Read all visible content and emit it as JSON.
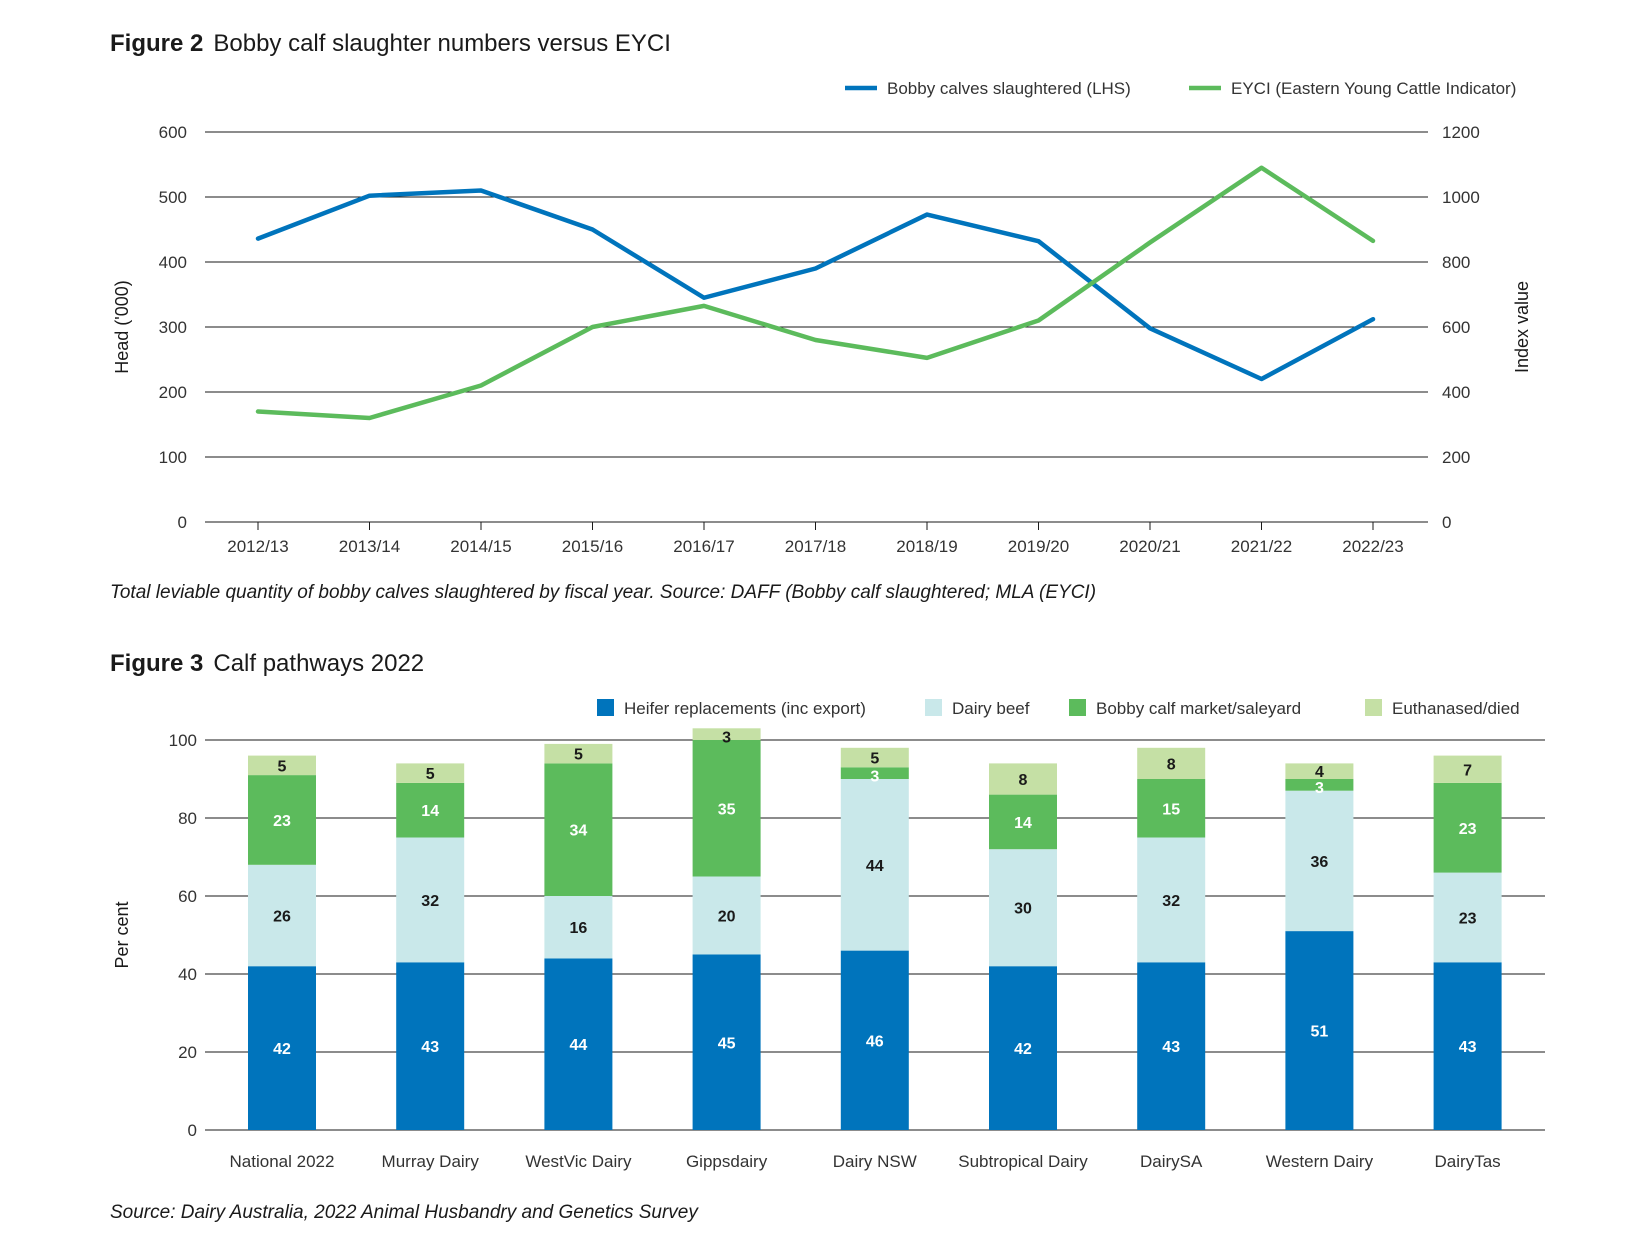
{
  "figure2": {
    "number": "Figure 2",
    "title": "Bobby calf slaughter numbers versus EYCI",
    "caption": "Total leviable quantity of bobby calves slaughtered by fiscal year. Source: DAFF (Bobby calf slaughtered; MLA (EYCI)"
  },
  "figure3": {
    "number": "Figure 3",
    "title": "Calf pathways 2022",
    "caption": "Source: Dairy Australia, 2022 Animal Husbandry and Genetics Survey"
  },
  "colors": {
    "blue": "#0074bc",
    "green": "#5cbb5c",
    "light_blue": "#c9e8ea",
    "light_green": "#c5e0a5",
    "gridline": "#1a1a1a"
  },
  "chart_data": [
    {
      "type": "line",
      "x": [
        "2012/13",
        "2013/14",
        "2014/15",
        "2015/16",
        "2016/17",
        "2017/18",
        "2018/19",
        "2019/20",
        "2020/21",
        "2021/22",
        "2022/23"
      ],
      "series": [
        {
          "name": "Bobby calves slaughtered (LHS)",
          "axis": "left",
          "color": "#0074bc",
          "values": [
            436,
            502,
            510,
            450,
            345,
            390,
            473,
            432,
            298,
            220,
            312
          ]
        },
        {
          "name": "EYCI (Eastern Young Cattle Indicator)",
          "axis": "right",
          "color": "#5cbb5c",
          "values": [
            340,
            320,
            420,
            600,
            665,
            560,
            505,
            620,
            860,
            1090,
            865
          ]
        }
      ],
      "ylabel": "Head ('000)",
      "y2label": "Index value",
      "ylim": [
        0,
        600
      ],
      "y2lim": [
        0,
        1200
      ],
      "yticks": [
        "0",
        "100",
        "200",
        "300",
        "400",
        "500",
        "600"
      ],
      "y2ticks": [
        "0",
        "200",
        "400",
        "600",
        "800",
        "1000",
        "1200"
      ],
      "grid": true,
      "legend": "top-right"
    },
    {
      "type": "bar",
      "stacked": true,
      "categories": [
        "National 2022",
        "Murray Dairy",
        "WestVic Dairy",
        "Gippsdairy",
        "Dairy NSW",
        "Subtropical Dairy",
        "DairySA",
        "Western Dairy",
        "DairyTas"
      ],
      "series": [
        {
          "name": "Heifer replacements (inc export)",
          "color": "#0074bc",
          "values": [
            42,
            43,
            44,
            45,
            46,
            42,
            43,
            51,
            43
          ]
        },
        {
          "name": "Dairy beef",
          "color": "#c9e8ea",
          "values": [
            26,
            32,
            16,
            20,
            44,
            30,
            32,
            36,
            23
          ]
        },
        {
          "name": "Bobby calf market/saleyard",
          "color": "#5cbb5c",
          "values": [
            23,
            14,
            34,
            35,
            3,
            14,
            15,
            3,
            23
          ]
        },
        {
          "name": "Euthanased/died",
          "color": "#c5e0a5",
          "values": [
            5,
            5,
            5,
            3,
            5,
            8,
            8,
            4,
            7
          ]
        }
      ],
      "ylabel": "Per cent",
      "ylim": [
        0,
        100
      ],
      "yticks": [
        "0",
        "20",
        "40",
        "60",
        "80",
        "100"
      ],
      "grid": true,
      "legend": "top-right"
    }
  ]
}
